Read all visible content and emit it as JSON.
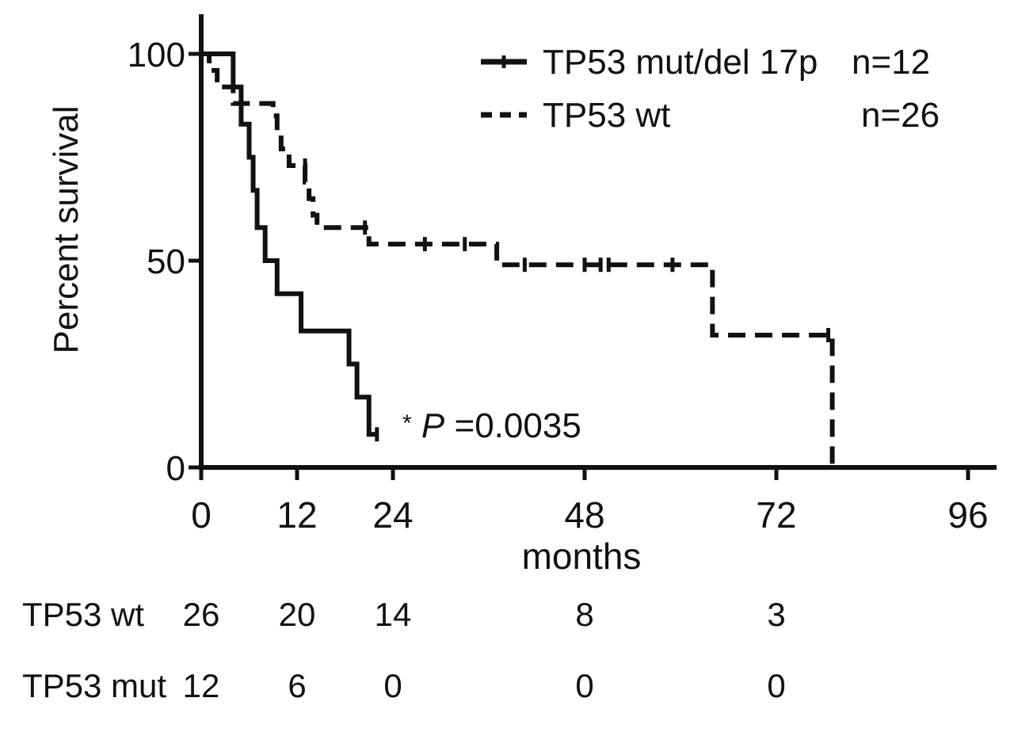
{
  "chart_data": {
    "type": "line",
    "subtype": "kaplan-meier step survival curves",
    "xlabel": "months",
    "ylabel": "Percent survival",
    "xlim": [
      0,
      96
    ],
    "ylim": [
      0,
      100
    ],
    "x_ticks": [
      0,
      12,
      24,
      48,
      72,
      96
    ],
    "x_tick_labels": [
      "0",
      "12",
      "24",
      "48",
      "72",
      "96"
    ],
    "y_ticks": [
      0,
      50,
      100
    ],
    "y_tick_labels": [
      "0",
      "50",
      "100"
    ],
    "grid": false,
    "legend_position": "top-right",
    "series": [
      {
        "name": "TP53 mut/del 17p",
        "n_label": "n=12",
        "line_style": "solid",
        "color": "#111111",
        "steps": [
          [
            0,
            100
          ],
          [
            4,
            100
          ],
          [
            4,
            92
          ],
          [
            5,
            92
          ],
          [
            5,
            83
          ],
          [
            6,
            83
          ],
          [
            6,
            75
          ],
          [
            6.5,
            75
          ],
          [
            6.5,
            67
          ],
          [
            7,
            67
          ],
          [
            7,
            58
          ],
          [
            8,
            58
          ],
          [
            8,
            50
          ],
          [
            9.5,
            50
          ],
          [
            9.5,
            42
          ],
          [
            12.5,
            42
          ],
          [
            12.5,
            33
          ],
          [
            18.5,
            33
          ],
          [
            18.5,
            25
          ],
          [
            19.5,
            25
          ],
          [
            19.5,
            17
          ],
          [
            21,
            17
          ],
          [
            21,
            8
          ],
          [
            22,
            8
          ]
        ],
        "censored": [
          [
            22,
            8
          ]
        ]
      },
      {
        "name": "TP53 wt",
        "n_label": "n=26",
        "line_style": "dashed",
        "color": "#111111",
        "steps": [
          [
            0,
            100
          ],
          [
            1,
            100
          ],
          [
            1,
            96
          ],
          [
            2,
            96
          ],
          [
            2,
            92
          ],
          [
            4,
            92
          ],
          [
            4,
            88
          ],
          [
            9,
            88
          ],
          [
            9,
            85
          ],
          [
            9.5,
            85
          ],
          [
            9.5,
            81
          ],
          [
            10,
            81
          ],
          [
            10,
            77
          ],
          [
            11,
            77
          ],
          [
            11,
            73
          ],
          [
            13,
            73
          ],
          [
            13,
            69
          ],
          [
            13.5,
            69
          ],
          [
            13.5,
            65
          ],
          [
            14,
            65
          ],
          [
            14,
            61
          ],
          [
            14.5,
            61
          ],
          [
            14.5,
            58
          ],
          [
            21,
            58
          ],
          [
            21,
            54
          ],
          [
            37,
            54
          ],
          [
            37,
            49
          ],
          [
            64,
            49
          ],
          [
            64,
            32
          ],
          [
            79,
            32
          ],
          [
            79,
            0
          ]
        ],
        "censored": [
          [
            13,
            73
          ],
          [
            20.5,
            58
          ],
          [
            28,
            54
          ],
          [
            33,
            54
          ],
          [
            40.5,
            49
          ],
          [
            48,
            49
          ],
          [
            50,
            49
          ],
          [
            51,
            49
          ],
          [
            59,
            49
          ],
          [
            78.5,
            32
          ]
        ]
      }
    ],
    "annotation": {
      "star": "*",
      "p_letter": "P",
      "p_value": "=0.0035"
    },
    "risk_table": {
      "times": [
        0,
        12,
        24,
        48,
        72
      ],
      "rows": [
        {
          "label": "TP53 wt",
          "values": [
            "26",
            "20",
            "14",
            "8",
            "3"
          ]
        },
        {
          "label": "TP53 mut",
          "values": [
            "12",
            "6",
            "0",
            "0",
            "0"
          ]
        }
      ]
    }
  }
}
